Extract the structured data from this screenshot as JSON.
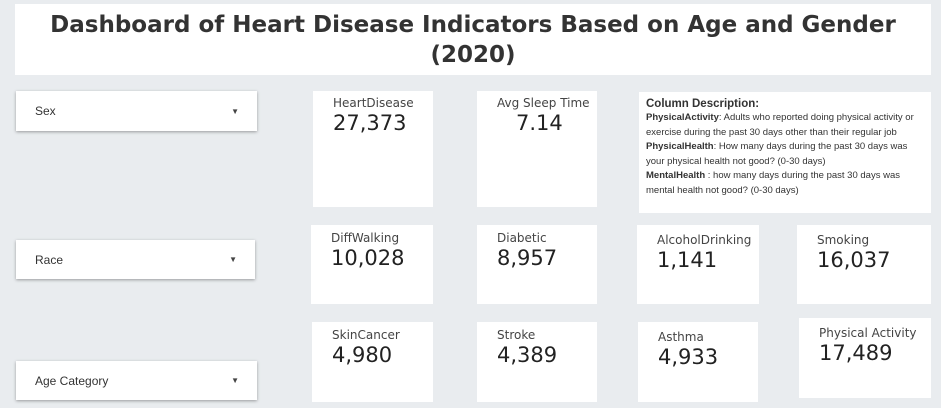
{
  "header": {
    "title": "Dashboard of Heart Disease Indicators Based on Age and Gender (2020)"
  },
  "filters": {
    "sex": {
      "label": "Sex"
    },
    "race": {
      "label": "Race"
    },
    "age": {
      "label": "Age Category"
    },
    "caret_icon": "caret-down-icon"
  },
  "cards": {
    "heart_disease": {
      "label": "HeartDisease",
      "value": "27,373"
    },
    "sleep_time": {
      "label": "Avg Sleep Time",
      "value": "7.14"
    },
    "diff_walking": {
      "label": "DiffWalking",
      "value": "10,028"
    },
    "diabetic": {
      "label": "Diabetic",
      "value": "8,957"
    },
    "alcohol": {
      "label": "AlcoholDrinking",
      "value": "1,141"
    },
    "smoking": {
      "label": "Smoking",
      "value": "16,037"
    },
    "skin_cancer": {
      "label": "SkinCancer",
      "value": "4,980"
    },
    "stroke": {
      "label": "Stroke",
      "value": "4,389"
    },
    "asthma": {
      "label": "Asthma",
      "value": "4,933"
    },
    "physical_activity": {
      "label": "Physical Activity",
      "value": "17,489"
    }
  },
  "description": {
    "heading": "Column Description:",
    "items": [
      {
        "term": "PhysicalActivity",
        "text": ": Adults who reported doing physical activity or exercise during the past 30 days other than their regular job"
      },
      {
        "term": "PhysicalHealth",
        "text": ": How many days during the past 30 days was your physical health not good? (0-30 days)"
      },
      {
        "term": "MentalHealth",
        "text": " : how many days during the past 30 days was mental health not good? (0-30 days)"
      }
    ]
  }
}
